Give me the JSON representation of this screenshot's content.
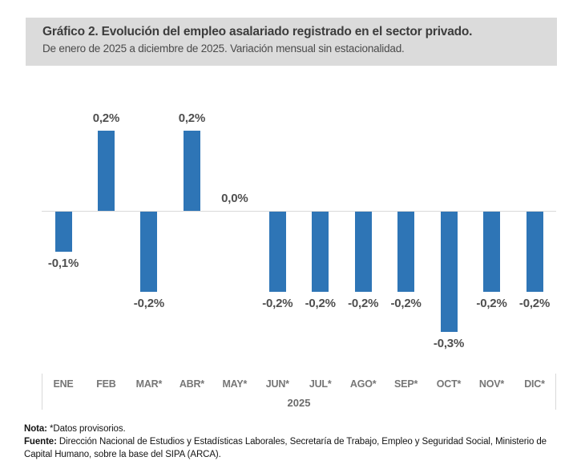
{
  "chart_data": {
    "type": "bar",
    "title": "Gráfico 2. Evolución del empleo asalariado registrado en el sector privado.",
    "subtitle": "De enero de 2025 a diciembre de 2025. Variación mensual sin estacionalidad.",
    "categories": [
      "ENE",
      "FEB",
      "MAR*",
      "ABR*",
      "MAY*",
      "JUN*",
      "JUL*",
      "AGO*",
      "SEP*",
      "OCT*",
      "NOV*",
      "DIC*"
    ],
    "values": [
      -0.1,
      0.2,
      -0.2,
      0.2,
      0.0,
      -0.2,
      -0.2,
      -0.2,
      -0.2,
      -0.3,
      -0.2,
      -0.2
    ],
    "labels": [
      "-0,1%",
      "0,2%",
      "-0,2%",
      "0,2%",
      "0,0%",
      "-0,2%",
      "-0,2%",
      "-0,2%",
      "-0,2%",
      "-0,3%",
      "-0,2%",
      "-0,2%"
    ],
    "unit": "%",
    "xlabel": "2025",
    "ylabel": "",
    "ylim": [
      -0.35,
      0.3
    ],
    "grid": false,
    "legend": false,
    "bar_color": "#2E75B6",
    "axis_line_color": "#D9D9D9"
  },
  "colors": {
    "header_background": "#DBDBDB",
    "value_label_color": "#4F4F4F",
    "month_label_color": "#767676"
  },
  "notes": {
    "nota_label": "Nota:",
    "nota_text": " *Datos provisorios.",
    "fuente_label": "Fuente:",
    "fuente_lines": [
      " Dirección Nacional de Estudios y Estadísticas Laborales, Secretaría de Trabajo, Empleo y Seguridad Social, Ministerio de",
      "Capital Humano, sobre la base del SIPA (ARCA)."
    ]
  }
}
